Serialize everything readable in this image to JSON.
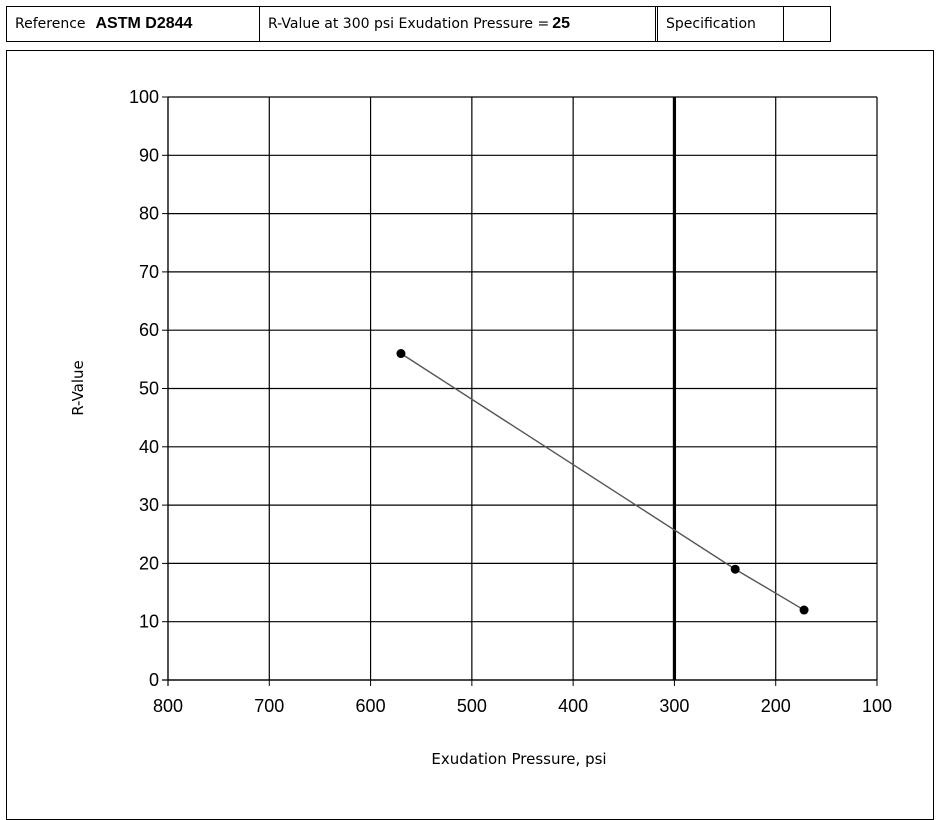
{
  "header": {
    "reference_label": "Reference",
    "reference_value": "ASTM D2844",
    "rvalue_label": "R-Value at 300 psi Exudation Pressure = ",
    "rvalue_value": "25",
    "spec_label": "Specification",
    "spec_value": ""
  },
  "chart_data": {
    "type": "line",
    "title": "",
    "xlabel": "Exudation Pressure, psi",
    "ylabel": "R-Value",
    "xlim": [
      800,
      100
    ],
    "ylim": [
      0,
      100
    ],
    "x_reversed": true,
    "xticks": [
      800,
      700,
      600,
      500,
      400,
      300,
      200,
      100
    ],
    "yticks": [
      0,
      10,
      20,
      30,
      40,
      50,
      60,
      70,
      80,
      90,
      100
    ],
    "grid": true,
    "reference_line_x": 300,
    "series": [
      {
        "x": [
          570,
          240,
          172
        ],
        "y": [
          56,
          19,
          12
        ],
        "color": "#000000"
      }
    ]
  }
}
